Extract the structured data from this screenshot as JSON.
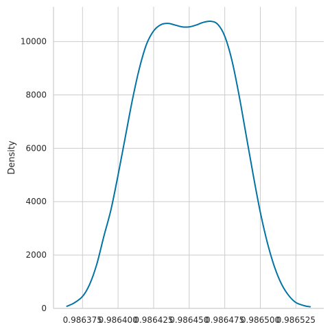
{
  "chart_data": {
    "type": "line",
    "title": "",
    "xlabel": "",
    "ylabel": "Density",
    "xlim": [
      0.9863546,
      0.9865446
    ],
    "ylim": [
      0,
      11300
    ],
    "x_ticks": [
      0.986375,
      0.9864,
      0.986425,
      0.98645,
      0.986475,
      0.9865,
      0.986525
    ],
    "x_tick_labels": [
      "0.986375",
      "0.986400",
      "0.986425",
      "0.986450",
      "0.986475",
      "0.986500",
      "0.986525"
    ],
    "y_ticks": [
      0,
      2000,
      4000,
      6000,
      8000,
      10000
    ],
    "y_tick_labels": [
      "0",
      "2000",
      "4000",
      "6000",
      "8000",
      "10000"
    ],
    "grid": true,
    "series": [
      {
        "name": "density",
        "color": "#0072a3",
        "x": [
          0.986364,
          0.986369,
          0.986375,
          0.98638,
          0.986385,
          0.98639,
          0.986395,
          0.9864,
          0.986405,
          0.98641,
          0.986415,
          0.98642,
          0.986425,
          0.98643,
          0.986435,
          0.98644,
          0.986445,
          0.98645,
          0.986455,
          0.98646,
          0.986465,
          0.98647,
          0.986475,
          0.98648,
          0.986485,
          0.98649,
          0.986495,
          0.9865,
          0.986505,
          0.98651,
          0.986515,
          0.98652,
          0.986525,
          0.986531,
          0.986535
        ],
        "y": [
          80,
          200,
          450,
          900,
          1650,
          2700,
          3700,
          5000,
          6400,
          7800,
          9000,
          9900,
          10400,
          10630,
          10680,
          10620,
          10550,
          10550,
          10620,
          10720,
          10760,
          10650,
          10200,
          9300,
          8000,
          6500,
          5000,
          3600,
          2450,
          1550,
          900,
          480,
          220,
          100,
          60
        ]
      }
    ]
  }
}
